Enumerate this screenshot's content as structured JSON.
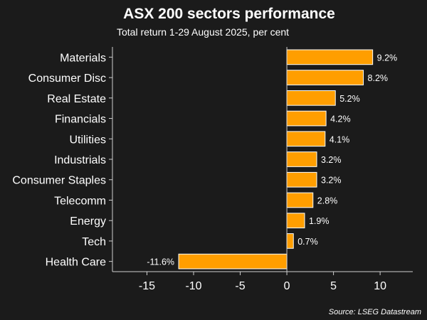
{
  "chart_data": {
    "type": "bar",
    "orientation": "horizontal",
    "title": "ASX 200 sectors performance",
    "subtitle": "Total return 1-29 August 2025, per cent",
    "source": "Source: LSEG Datastream",
    "categories": [
      "Materials",
      "Consumer Disc",
      "Real Estate",
      "Financials",
      "Utilities",
      "Industrials",
      "Consumer Staples",
      "Telecomm",
      "Energy",
      "Tech",
      "Health Care"
    ],
    "values": [
      9.2,
      8.2,
      5.2,
      4.2,
      4.1,
      3.2,
      3.2,
      2.8,
      1.9,
      0.7,
      -11.6
    ],
    "data_labels": [
      "9.2%",
      "8.2%",
      "5.2%",
      "4.2%",
      "4.1%",
      "3.2%",
      "3.2%",
      "2.8%",
      "1.9%",
      "0.7%",
      "-11.6%"
    ],
    "xticks": [
      -15,
      -10,
      -5,
      0,
      5,
      10
    ],
    "xlim": [
      -18.7,
      13.5
    ],
    "grid": false,
    "legend": "none",
    "colors": {
      "bar": "#ff9e00",
      "bar_border": "#ffffff",
      "background": "#1b1b1b",
      "text": "#ffffff",
      "axis": "#cfcfcf"
    }
  }
}
